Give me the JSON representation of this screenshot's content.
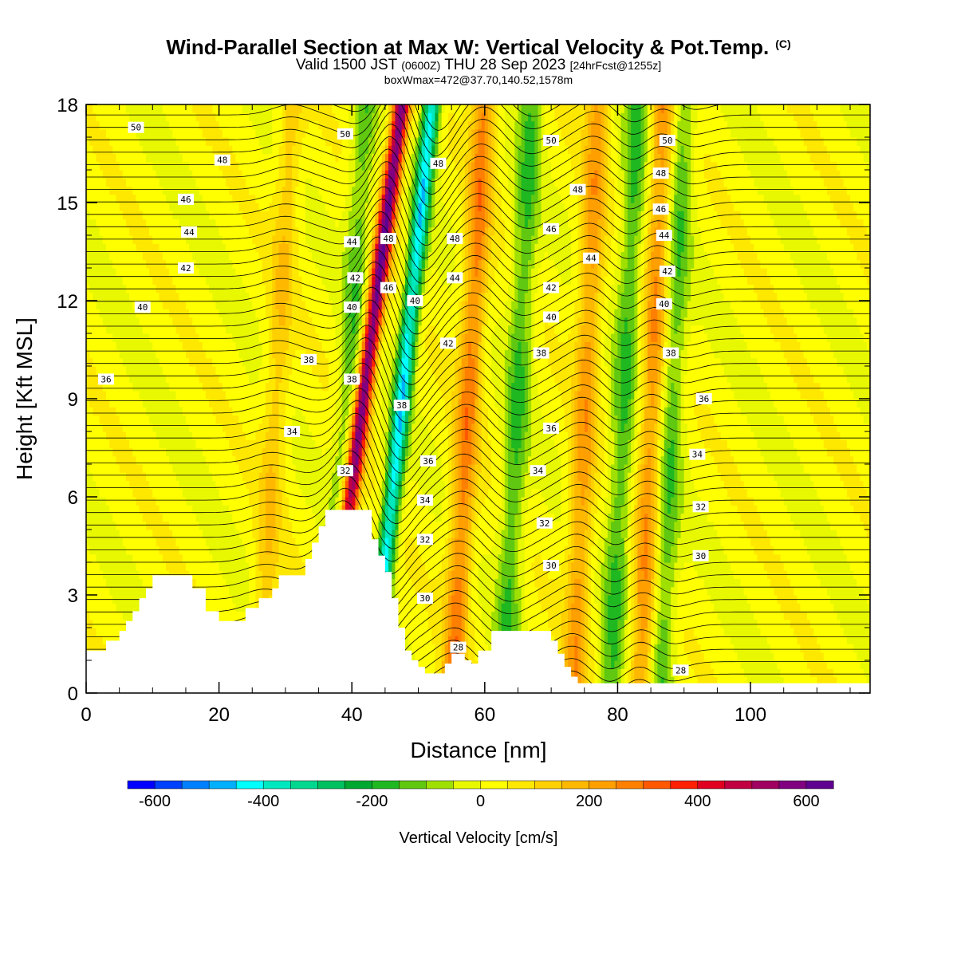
{
  "header": {
    "title": "Wind-Parallel Section at Max W: Vertical Velocity & Pot.Temp.",
    "title_mark": "(C)",
    "valid_prefix": "Valid 1500 JST",
    "valid_utc": "(0600Z)",
    "valid_date": "THU 28 Sep 2023",
    "forecast": "[24hrFcst@1255z]",
    "box_info": "boxWmax=472@37.70,140.52,1578m"
  },
  "chart_data": {
    "type": "heatmap",
    "xlabel": "Distance [nm]",
    "ylabel": "Height [Kft MSL]",
    "xlim": [
      0,
      118
    ],
    "ylim": [
      0,
      18
    ],
    "x_ticks": [
      0,
      20,
      40,
      60,
      80,
      100
    ],
    "y_ticks": [
      0,
      3,
      6,
      9,
      12,
      15,
      18
    ],
    "colorbar": {
      "label": "Vertical Velocity [cm/s]",
      "min": -650,
      "max": 650,
      "step": 50,
      "ticks": [
        -600,
        -400,
        -200,
        0,
        200,
        400,
        600
      ],
      "colors": [
        "#0000ff",
        "#0040ff",
        "#0080ff",
        "#00b0ff",
        "#00ffff",
        "#00e8c0",
        "#00d890",
        "#00c060",
        "#00a830",
        "#20b820",
        "#60c810",
        "#a0e000",
        "#e8f800",
        "#ffff00",
        "#ffe800",
        "#ffd000",
        "#ffb800",
        "#ffa000",
        "#ff8000",
        "#ff5800",
        "#ff2000",
        "#e00020",
        "#c00040",
        "#a00060",
        "#800080",
        "#600090"
      ]
    },
    "terrain_kft": [
      [
        0,
        1.3
      ],
      [
        3,
        1.3
      ],
      [
        3,
        1.6
      ],
      [
        5,
        1.6
      ],
      [
        5,
        1.9
      ],
      [
        6,
        1.9
      ],
      [
        6,
        2.2
      ],
      [
        7,
        2.2
      ],
      [
        7,
        2.5
      ],
      [
        8,
        2.5
      ],
      [
        8,
        2.9
      ],
      [
        9,
        2.9
      ],
      [
        9,
        3.2
      ],
      [
        10,
        3.2
      ],
      [
        10,
        3.6
      ],
      [
        16,
        3.6
      ],
      [
        16,
        3.2
      ],
      [
        18,
        3.2
      ],
      [
        18,
        2.5
      ],
      [
        20,
        2.5
      ],
      [
        20,
        2.2
      ],
      [
        24,
        2.2
      ],
      [
        24,
        2.6
      ],
      [
        26,
        2.6
      ],
      [
        26,
        2.9
      ],
      [
        28,
        2.9
      ],
      [
        28,
        3.2
      ],
      [
        29,
        3.2
      ],
      [
        29,
        3.6
      ],
      [
        33,
        3.6
      ],
      [
        33,
        4.1
      ],
      [
        34,
        4.1
      ],
      [
        34,
        4.6
      ],
      [
        35,
        4.6
      ],
      [
        35,
        5.1
      ],
      [
        36,
        5.1
      ],
      [
        36,
        5.6
      ],
      [
        43,
        5.6
      ],
      [
        43,
        4.7
      ],
      [
        44,
        4.7
      ],
      [
        44,
        4.2
      ],
      [
        45,
        4.2
      ],
      [
        45,
        3.7
      ],
      [
        46,
        3.7
      ],
      [
        46,
        2.9
      ],
      [
        47,
        2.9
      ],
      [
        47,
        2.0
      ],
      [
        48,
        2.0
      ],
      [
        48,
        1.3
      ],
      [
        49,
        1.3
      ],
      [
        49,
        1.0
      ],
      [
        50,
        1.0
      ],
      [
        50,
        0.8
      ],
      [
        51,
        0.8
      ],
      [
        51,
        0.6
      ],
      [
        54,
        0.6
      ],
      [
        54,
        0.9
      ],
      [
        55,
        0.9
      ],
      [
        55,
        1.2
      ],
      [
        57,
        1.2
      ],
      [
        57,
        1.0
      ],
      [
        58,
        1.0
      ],
      [
        58,
        0.9
      ],
      [
        59,
        0.9
      ],
      [
        59,
        1.3
      ],
      [
        61,
        1.3
      ],
      [
        61,
        1.9
      ],
      [
        70,
        1.9
      ],
      [
        70,
        1.6
      ],
      [
        71,
        1.6
      ],
      [
        71,
        1.2
      ],
      [
        72,
        1.2
      ],
      [
        72,
        0.8
      ],
      [
        73,
        0.8
      ],
      [
        73,
        0.5
      ],
      [
        74,
        0.5
      ],
      [
        74,
        0.3
      ],
      [
        118,
        0.3
      ]
    ],
    "updraft_bands_nm": [
      {
        "x_top": 47.5,
        "slope": 0.72,
        "w": 600
      },
      {
        "x_top": 60,
        "slope": 0.3,
        "w": 250
      },
      {
        "x_top": 77,
        "slope": 0.22,
        "w": 200
      },
      {
        "x_top": 87,
        "slope": 0.22,
        "w": 220
      },
      {
        "x_top": 31,
        "slope": 0.3,
        "w": 120
      }
    ],
    "downdraft_bands_nm": [
      {
        "x_top": 52,
        "slope": 0.55,
        "w": -450
      },
      {
        "x_top": 42,
        "slope": 0.3,
        "w": -150
      },
      {
        "x_top": 67,
        "slope": 0.25,
        "w": -170
      },
      {
        "x_top": 83,
        "slope": 0.25,
        "w": -170
      },
      {
        "x_top": 90,
        "slope": 0.22,
        "w": -160
      }
    ],
    "contour_levels_K": [
      28,
      30,
      32,
      34,
      36,
      38,
      40,
      42,
      44,
      46,
      48,
      50
    ],
    "contour_labels": [
      {
        "text": "50",
        "x": 7.5,
        "y": 17.3
      },
      {
        "text": "48",
        "x": 20.5,
        "y": 16.3
      },
      {
        "text": "46",
        "x": 15,
        "y": 15.1
      },
      {
        "text": "44",
        "x": 15.5,
        "y": 14.1
      },
      {
        "text": "42",
        "x": 15,
        "y": 13.0
      },
      {
        "text": "40",
        "x": 8.5,
        "y": 11.8
      },
      {
        "text": "38",
        "x": 33.5,
        "y": 10.2
      },
      {
        "text": "36",
        "x": 3,
        "y": 9.6
      },
      {
        "text": "34",
        "x": 31,
        "y": 8.0
      },
      {
        "text": "32",
        "x": 39,
        "y": 6.8
      },
      {
        "text": "50",
        "x": 39,
        "y": 17.1
      },
      {
        "text": "44",
        "x": 40,
        "y": 13.8
      },
      {
        "text": "42",
        "x": 40.5,
        "y": 12.7
      },
      {
        "text": "40",
        "x": 40,
        "y": 11.8
      },
      {
        "text": "38",
        "x": 40,
        "y": 9.6
      },
      {
        "text": "48",
        "x": 45.5,
        "y": 13.9
      },
      {
        "text": "46",
        "x": 45.5,
        "y": 12.4
      },
      {
        "text": "40",
        "x": 49.5,
        "y": 12.0
      },
      {
        "text": "48",
        "x": 53,
        "y": 16.2
      },
      {
        "text": "48",
        "x": 55.5,
        "y": 13.9
      },
      {
        "text": "44",
        "x": 55.5,
        "y": 12.7
      },
      {
        "text": "42",
        "x": 54.5,
        "y": 10.7
      },
      {
        "text": "38",
        "x": 47.5,
        "y": 8.8
      },
      {
        "text": "36",
        "x": 51.5,
        "y": 7.1
      },
      {
        "text": "34",
        "x": 51,
        "y": 5.9
      },
      {
        "text": "32",
        "x": 51,
        "y": 4.7
      },
      {
        "text": "30",
        "x": 51,
        "y": 2.9
      },
      {
        "text": "28",
        "x": 56,
        "y": 1.4
      },
      {
        "text": "50",
        "x": 70,
        "y": 16.9
      },
      {
        "text": "48",
        "x": 74,
        "y": 15.4
      },
      {
        "text": "46",
        "x": 70,
        "y": 14.2
      },
      {
        "text": "44",
        "x": 76,
        "y": 13.3
      },
      {
        "text": "42",
        "x": 70,
        "y": 12.4
      },
      {
        "text": "40",
        "x": 70,
        "y": 11.5
      },
      {
        "text": "38",
        "x": 68.5,
        "y": 10.4
      },
      {
        "text": "36",
        "x": 70,
        "y": 8.1
      },
      {
        "text": "34",
        "x": 68,
        "y": 6.8
      },
      {
        "text": "32",
        "x": 69,
        "y": 5.2
      },
      {
        "text": "30",
        "x": 70,
        "y": 3.9
      },
      {
        "text": "50",
        "x": 87.5,
        "y": 16.9
      },
      {
        "text": "48",
        "x": 86.5,
        "y": 15.9
      },
      {
        "text": "46",
        "x": 86.5,
        "y": 14.8
      },
      {
        "text": "44",
        "x": 87,
        "y": 14.0
      },
      {
        "text": "42",
        "x": 87.5,
        "y": 12.9
      },
      {
        "text": "40",
        "x": 87,
        "y": 11.9
      },
      {
        "text": "38",
        "x": 88,
        "y": 10.4
      },
      {
        "text": "36",
        "x": 93,
        "y": 9.0
      },
      {
        "text": "34",
        "x": 92,
        "y": 7.3
      },
      {
        "text": "32",
        "x": 92.5,
        "y": 5.7
      },
      {
        "text": "30",
        "x": 92.5,
        "y": 4.2
      },
      {
        "text": "28",
        "x": 89.5,
        "y": 0.7
      }
    ]
  }
}
